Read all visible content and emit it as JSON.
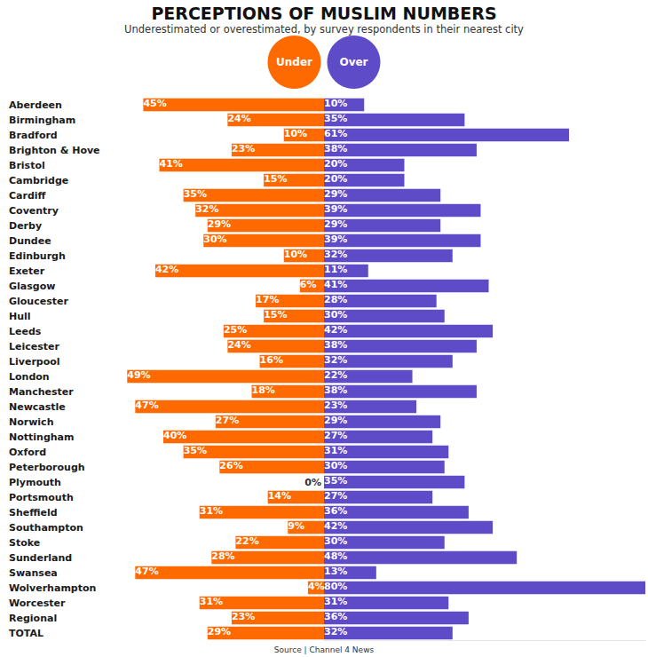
{
  "chart_data": {
    "type": "bar",
    "orientation": "horizontal",
    "title": "PERCEPTIONS OF MUSLIM NUMBERS",
    "subtitle": "Underestimated or overestimated, by survey respondents in their nearest city",
    "annotations": [
      "Source | Channel 4 News"
    ],
    "categories": [
      "Aberdeen",
      "Birmingham",
      "Bradford",
      "Brighton & Hove",
      "Bristol",
      "Cambridge",
      "Cardiff",
      "Coventry",
      "Derby",
      "Dundee",
      "Edinburgh",
      "Exeter",
      "Glasgow",
      "Gloucester",
      "Hull",
      "Leeds",
      "Leicester",
      "Liverpool",
      "London",
      "Manchester",
      "Newcastle",
      "Norwich",
      "Nottingham",
      "Oxford",
      "Peterborough",
      "Plymouth",
      "Portsmouth",
      "Sheffield",
      "Southampton",
      "Stoke",
      "Sunderland",
      "Swansea",
      "Wolverhampton",
      "Worcester",
      "Regional",
      "TOTAL"
    ],
    "series": [
      {
        "name": "Under",
        "color": "#ff6a00",
        "values": [
          45,
          24,
          10,
          23,
          41,
          15,
          35,
          32,
          29,
          30,
          10,
          42,
          6,
          17,
          15,
          25,
          24,
          16,
          49,
          18,
          47,
          27,
          40,
          35,
          26,
          0,
          14,
          31,
          9,
          22,
          28,
          47,
          4,
          31,
          23,
          29
        ],
        "value_labels": [
          "45%",
          "24%",
          "10%",
          "23%",
          "41%",
          "15%",
          "35%",
          "32%",
          "29%",
          "30%",
          "10%",
          "42%",
          "6%",
          "17%",
          "15%",
          "25%",
          "24%",
          "16%",
          "49%",
          "18%",
          "47%",
          "27%",
          "40%",
          "35%",
          "26%",
          "0%",
          "14%",
          "31%",
          "9%",
          "22%",
          "28%",
          "47%",
          "4%",
          "31%",
          "23%",
          "29%"
        ]
      },
      {
        "name": "Over",
        "color": "#5e4bc8",
        "values": [
          10,
          35,
          61,
          38,
          20,
          20,
          29,
          39,
          29,
          39,
          32,
          11,
          41,
          28,
          30,
          42,
          38,
          32,
          22,
          38,
          23,
          29,
          27,
          31,
          30,
          35,
          27,
          36,
          42,
          30,
          48,
          13,
          80,
          31,
          36,
          32
        ],
        "value_labels": [
          "10%",
          "35%",
          "61%",
          "38%",
          "20%",
          "20%",
          "29%",
          "39%",
          "29%",
          "39%",
          "32%",
          "11%",
          "41%",
          "28%",
          "30%",
          "42%",
          "38%",
          "32%",
          "22%",
          "38%",
          "23%",
          "29%",
          "27%",
          "31%",
          "30%",
          "35%",
          "27%",
          "36%",
          "42%",
          "30%",
          "48%",
          "13%",
          "80%",
          "31%",
          "36%",
          "32%"
        ]
      }
    ],
    "xlim": [
      0,
      80
    ],
    "data_labels": true,
    "tick_labels": "y",
    "grid": false,
    "legend": "top"
  }
}
